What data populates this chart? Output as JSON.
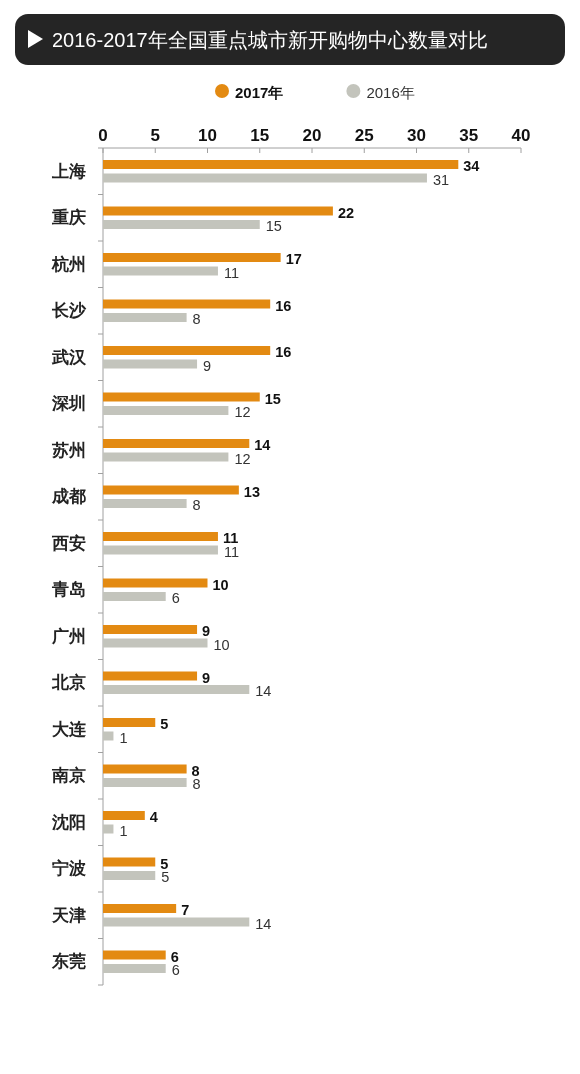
{
  "chart_data": {
    "type": "bar",
    "orientation": "horizontal",
    "title": "2016-2017年全国重点城市新开购物中心数量对比",
    "categories": [
      "上海",
      "重庆",
      "杭州",
      "长沙",
      "武汉",
      "深圳",
      "苏州",
      "成都",
      "西安",
      "青岛",
      "广州",
      "北京",
      "大连",
      "南京",
      "沈阳",
      "宁波",
      "天津",
      "东莞"
    ],
    "series": [
      {
        "name": "2017年",
        "color": "#e38a12",
        "values": [
          34,
          22,
          17,
          16,
          16,
          15,
          14,
          13,
          11,
          10,
          9,
          9,
          5,
          8,
          4,
          5,
          7,
          6
        ]
      },
      {
        "name": "2016年",
        "color": "#c3c4bc",
        "values": [
          31,
          15,
          11,
          8,
          9,
          12,
          12,
          8,
          11,
          6,
          10,
          14,
          1,
          8,
          1,
          5,
          14,
          6
        ]
      }
    ],
    "xlim": [
      0,
      40
    ],
    "xticks": [
      0,
      5,
      10,
      15,
      20,
      25,
      30,
      35,
      40
    ],
    "legend": "top",
    "data_labels": true
  }
}
